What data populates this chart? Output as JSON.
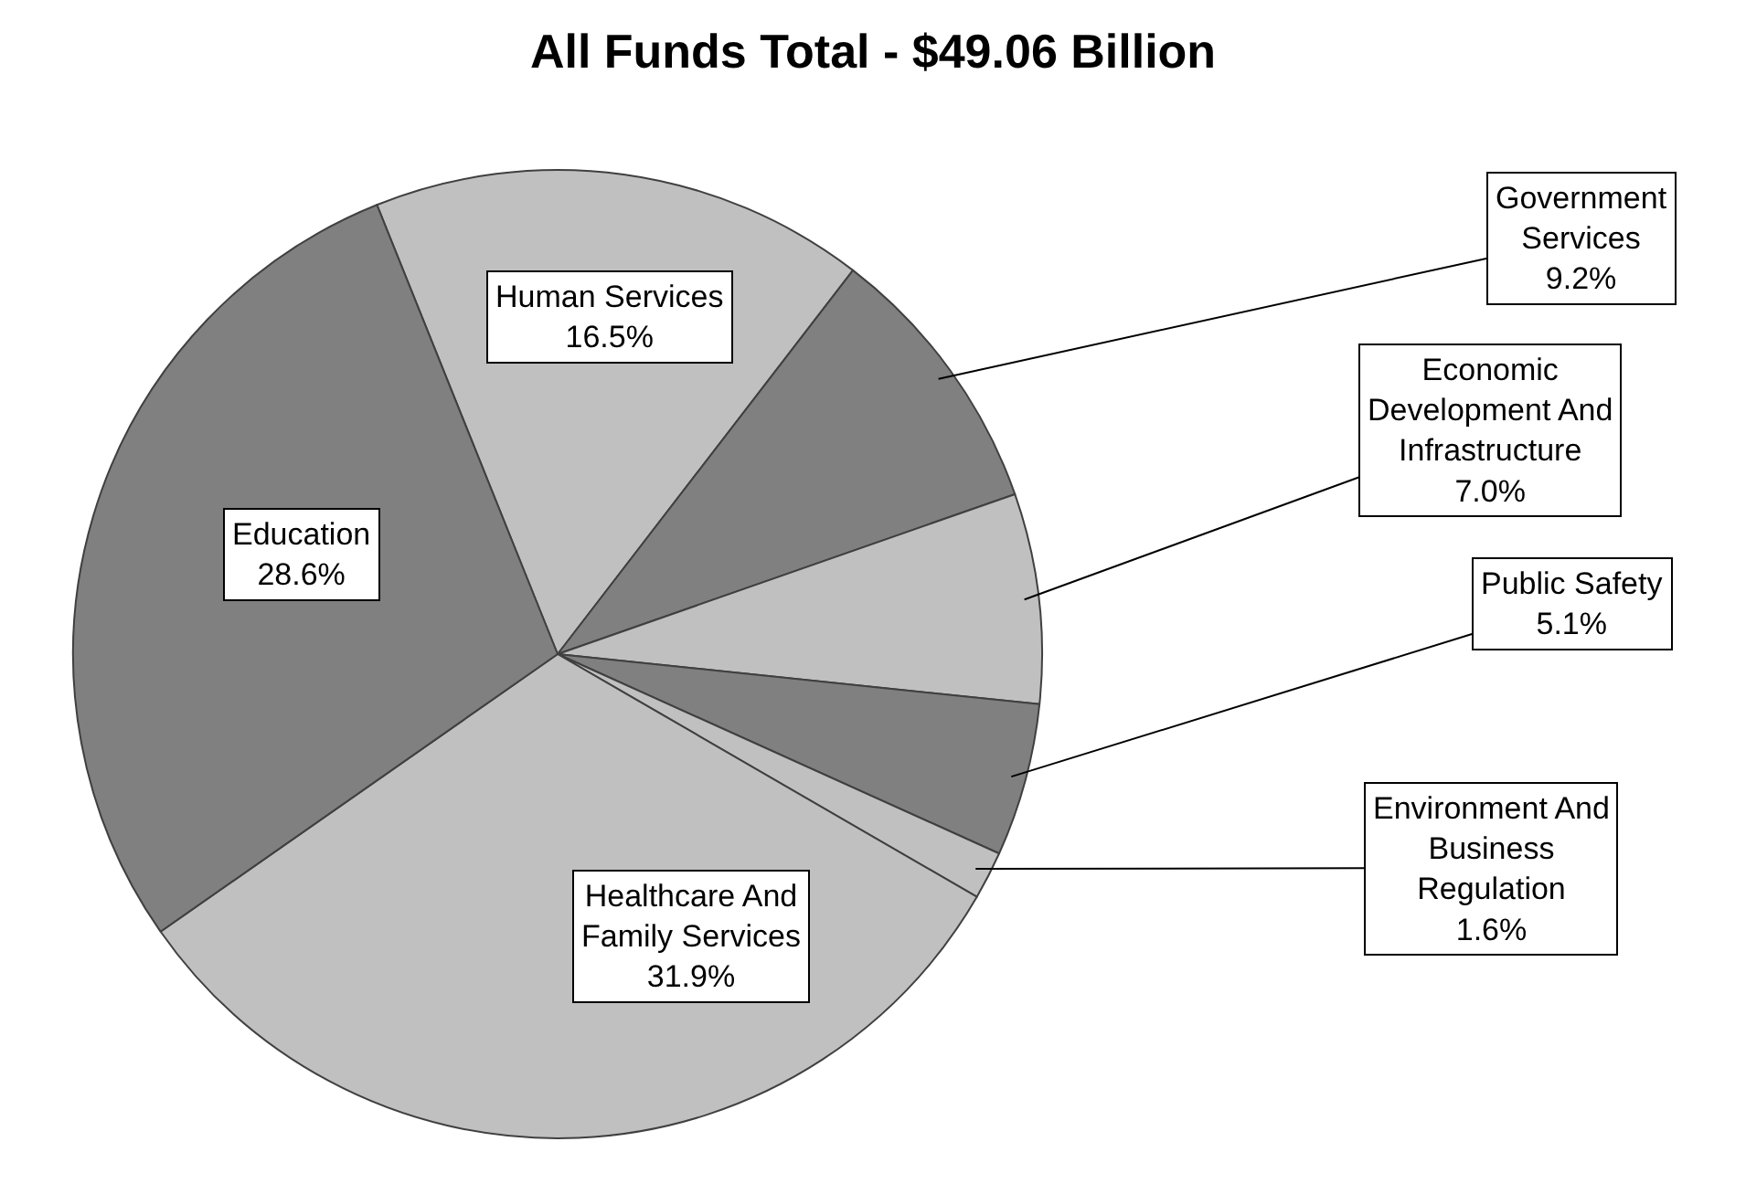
{
  "chart_data": {
    "type": "pie",
    "title": "All Funds Total - $49.06 Billion",
    "categories": [
      "Human Services",
      "Government Services",
      "Economic Development And Infrastructure",
      "Public Safety",
      "Environment And Business Regulation",
      "Healthcare And Family Services",
      "Education"
    ],
    "values": [
      16.5,
      9.2,
      7.0,
      5.1,
      1.6,
      31.9,
      28.6
    ],
    "colors": [
      "#c0c0c0",
      "#808080",
      "#c0c0c0",
      "#808080",
      "#c0c0c0",
      "#c0c0c0",
      "#808080"
    ],
    "value_labels": [
      "16.5%",
      "9.2%",
      "7.0%",
      "5.1%",
      "1.6%",
      "31.9%",
      "28.6%"
    ]
  }
}
